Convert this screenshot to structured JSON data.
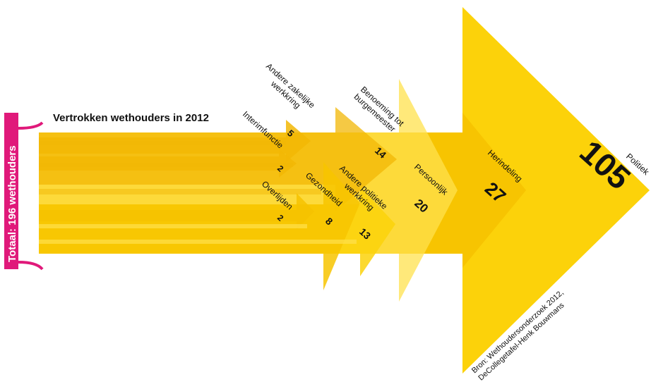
{
  "chart_data": {
    "type": "sankey-arrow",
    "title": "Vertrokken wethouders in 2012",
    "total_label": "Totaal: 196 wethouders",
    "total": 196,
    "categories": [
      {
        "label": "Interimfunctie",
        "value": 2
      },
      {
        "label": "Andere zakelijke werkkring",
        "value": 5
      },
      {
        "label": "Overlijden",
        "value": 2
      },
      {
        "label": "Gezondheid",
        "value": 8
      },
      {
        "label": "Andere politieke werkkring",
        "value": 13
      },
      {
        "label": "Benoeming tot burgemeester",
        "value": 14
      },
      {
        "label": "Persoonlijk",
        "value": 20
      },
      {
        "label": "Herindeling",
        "value": 27
      },
      {
        "label": "Politiek",
        "value": 105
      }
    ],
    "source": "Bron: Wethoudersonderzoek 2012, DeCollegetafel-Henk Bouwmans",
    "colors": {
      "bracket": "#e0197a",
      "dark_yellow": "#f2b705",
      "yellow": "#fcd20a",
      "light_yellow": "#ffe14d",
      "text": "#111111"
    }
  }
}
